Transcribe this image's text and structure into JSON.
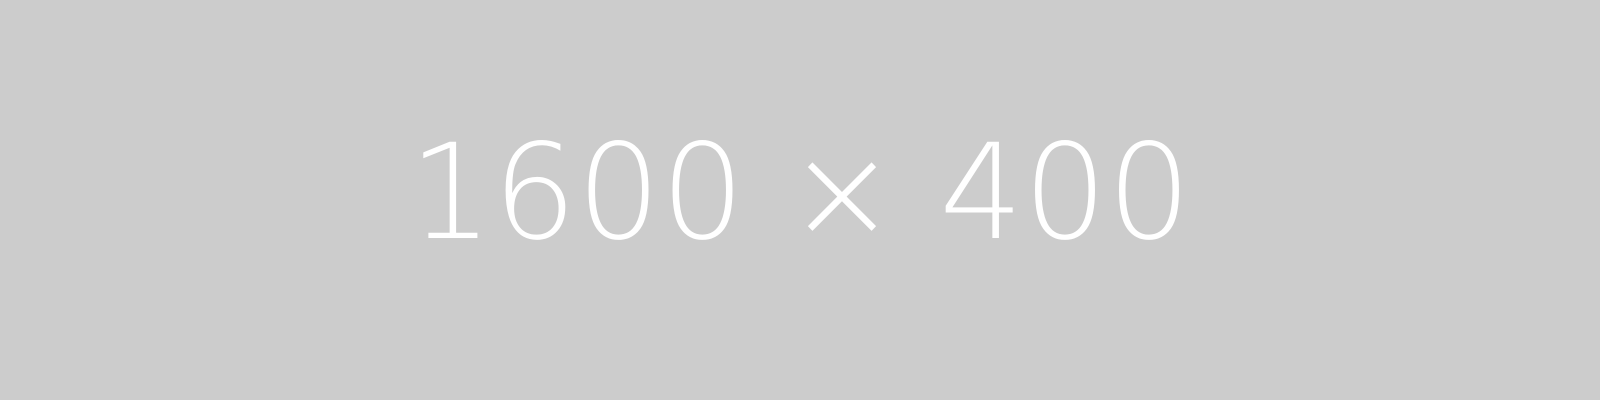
{
  "placeholder": {
    "text": "1600 × 400",
    "background_color": "#cccccc",
    "text_color": "#ffffff"
  }
}
